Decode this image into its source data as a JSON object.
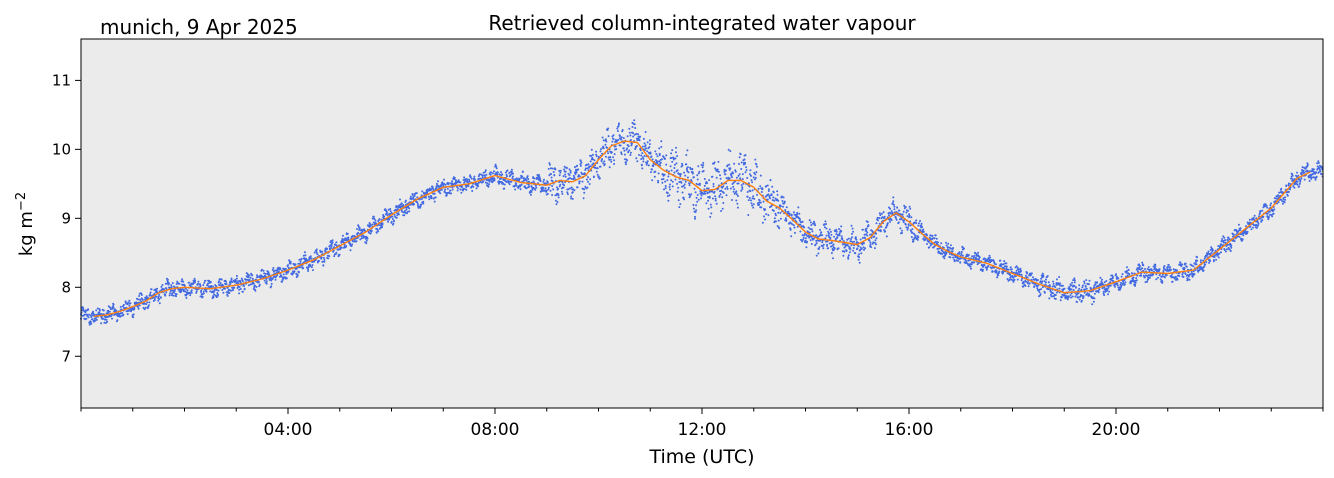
{
  "chart_data": {
    "type": "line",
    "location_date": "munich, 9 Apr 2025",
    "title": "Retrieved column-integrated water vapour",
    "xlabel": "Time (UTC)",
    "ylabel": "kg m",
    "ylabel_sup": "−2",
    "x_unit": "hours UTC",
    "xlim": [
      0,
      24
    ],
    "ylim": [
      6.25,
      11.6
    ],
    "xticks": [
      {
        "value": 4,
        "label": "04:00"
      },
      {
        "value": 8,
        "label": "08:00"
      },
      {
        "value": 12,
        "label": "12:00"
      },
      {
        "value": 16,
        "label": "16:00"
      },
      {
        "value": 20,
        "label": "20:00"
      }
    ],
    "yticks": [
      {
        "value": 7,
        "label": "7"
      },
      {
        "value": 8,
        "label": "8"
      },
      {
        "value": 9,
        "label": "9"
      },
      {
        "value": 10,
        "label": "10"
      },
      {
        "value": 11,
        "label": "11"
      }
    ],
    "grid": false,
    "legend": "none",
    "colors": {
      "background": "#ebebeb",
      "raw_points": "#4169e1",
      "smoothed_line": "#ff7f0e"
    },
    "series": [
      {
        "x": [
          0.25,
          0.5,
          0.75,
          1.0,
          1.25,
          1.5,
          1.75,
          2.0,
          2.5,
          3.0,
          3.5,
          4.0,
          4.5,
          5.0,
          5.5,
          6.0,
          6.5,
          7.0,
          7.5,
          8.0,
          8.5,
          9.0,
          9.25,
          9.5,
          9.75,
          10.0,
          10.25,
          10.5,
          10.75,
          11.0,
          11.25,
          11.5,
          11.75,
          12.0,
          12.25,
          12.5,
          12.75,
          13.0,
          13.25,
          13.5,
          13.75,
          14.0,
          14.25,
          14.5,
          14.75,
          15.0,
          15.25,
          15.5,
          15.75,
          16.0,
          16.25,
          16.5,
          16.75,
          17.0,
          17.5,
          18.0,
          18.5,
          19.0,
          19.5,
          20.0,
          20.5,
          21.0,
          21.5,
          22.0,
          22.5,
          23.0,
          23.5,
          23.75
        ],
        "y": [
          7.58,
          7.6,
          7.65,
          7.72,
          7.8,
          7.92,
          7.98,
          8.0,
          7.98,
          8.03,
          8.12,
          8.25,
          8.4,
          8.6,
          8.8,
          9.05,
          9.28,
          9.45,
          9.5,
          9.62,
          9.52,
          9.48,
          9.55,
          9.53,
          9.62,
          9.85,
          10.05,
          10.12,
          10.1,
          9.85,
          9.7,
          9.6,
          9.55,
          9.4,
          9.42,
          9.55,
          9.55,
          9.45,
          9.25,
          9.15,
          8.98,
          8.8,
          8.7,
          8.68,
          8.65,
          8.62,
          8.72,
          8.95,
          9.08,
          8.95,
          8.78,
          8.62,
          8.52,
          8.44,
          8.35,
          8.2,
          8.05,
          7.92,
          7.95,
          8.08,
          8.22,
          8.2,
          8.25,
          8.55,
          8.85,
          9.15,
          9.58,
          9.67
        ]
      }
    ]
  }
}
